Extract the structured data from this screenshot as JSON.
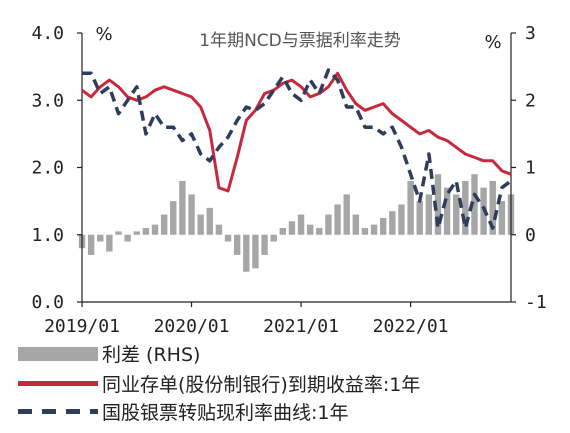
{
  "chart_data": {
    "type": "line",
    "title": "1年期NCD与票据利率走势",
    "left_unit": "%",
    "right_unit": "%",
    "x_ticks": [
      "2019/01",
      "2020/01",
      "2021/01",
      "2022/01"
    ],
    "left_axis": {
      "ticks": [
        "0.0",
        "1.0",
        "2.0",
        "3.0",
        "4.0"
      ],
      "ylim": [
        0,
        4
      ]
    },
    "right_axis": {
      "ticks": [
        "-1",
        "0",
        "1",
        "2",
        "3"
      ],
      "ylim": [
        -1,
        3
      ]
    },
    "x_range": [
      "2019-01",
      "2022-12"
    ],
    "series": [
      {
        "name": "利差 (RHS)",
        "kind": "bar",
        "axis": "right",
        "color": "#a6a6a6",
        "x": [
          "2019-01",
          "2019-02",
          "2019-03",
          "2019-04",
          "2019-05",
          "2019-06",
          "2019-07",
          "2019-08",
          "2019-09",
          "2019-10",
          "2019-11",
          "2019-12",
          "2020-01",
          "2020-02",
          "2020-03",
          "2020-04",
          "2020-05",
          "2020-06",
          "2020-07",
          "2020-08",
          "2020-09",
          "2020-10",
          "2020-11",
          "2020-12",
          "2021-01",
          "2021-02",
          "2021-03",
          "2021-04",
          "2021-05",
          "2021-06",
          "2021-07",
          "2021-08",
          "2021-09",
          "2021-10",
          "2021-11",
          "2021-12",
          "2022-01",
          "2022-02",
          "2022-03",
          "2022-04",
          "2022-05",
          "2022-06",
          "2022-07",
          "2022-08",
          "2022-09",
          "2022-10",
          "2022-11",
          "2022-12"
        ],
        "values": [
          -0.2,
          -0.3,
          -0.1,
          -0.25,
          0.05,
          -0.1,
          0.05,
          0.1,
          0.15,
          0.3,
          0.5,
          0.8,
          0.6,
          0.3,
          0.4,
          0.15,
          -0.1,
          -0.3,
          -0.55,
          -0.5,
          -0.3,
          -0.1,
          0.1,
          0.2,
          0.3,
          0.15,
          0.1,
          0.3,
          0.45,
          0.6,
          0.3,
          0.1,
          0.15,
          0.25,
          0.35,
          0.45,
          0.8,
          0.5,
          0.6,
          0.9,
          0.7,
          0.6,
          0.8,
          0.9,
          0.7,
          0.8,
          0.5,
          0.6
        ]
      },
      {
        "name": "同业存单(股份制银行)到期收益率:1年",
        "kind": "line",
        "axis": "left",
        "color": "#c8283c",
        "x": [
          "2019-01",
          "2019-02",
          "2019-03",
          "2019-04",
          "2019-05",
          "2019-06",
          "2019-07",
          "2019-08",
          "2019-09",
          "2019-10",
          "2019-11",
          "2019-12",
          "2020-01",
          "2020-02",
          "2020-03",
          "2020-04",
          "2020-05",
          "2020-06",
          "2020-07",
          "2020-08",
          "2020-09",
          "2020-10",
          "2020-11",
          "2020-12",
          "2021-01",
          "2021-02",
          "2021-03",
          "2021-04",
          "2021-05",
          "2021-06",
          "2021-07",
          "2021-08",
          "2021-09",
          "2021-10",
          "2021-11",
          "2021-12",
          "2022-01",
          "2022-02",
          "2022-03",
          "2022-04",
          "2022-05",
          "2022-06",
          "2022-07",
          "2022-08",
          "2022-09",
          "2022-10",
          "2022-11",
          "2022-12"
        ],
        "values": [
          3.15,
          3.05,
          3.2,
          3.3,
          3.2,
          3.05,
          3.0,
          3.05,
          3.15,
          3.2,
          3.15,
          3.1,
          3.05,
          2.9,
          2.55,
          1.7,
          1.65,
          2.15,
          2.7,
          2.85,
          3.1,
          3.15,
          3.25,
          3.3,
          3.2,
          3.05,
          3.1,
          3.2,
          3.4,
          3.15,
          2.95,
          2.85,
          2.9,
          2.95,
          2.8,
          2.7,
          2.6,
          2.5,
          2.55,
          2.45,
          2.4,
          2.3,
          2.2,
          2.15,
          2.1,
          2.1,
          1.95,
          1.9
        ]
      },
      {
        "name": "国股银票转贴现利率曲线:1年",
        "kind": "line",
        "axis": "left",
        "color": "#2f3d5c",
        "dashed": true,
        "x": [
          "2019-01",
          "2019-02",
          "2019-03",
          "2019-04",
          "2019-05",
          "2019-06",
          "2019-07",
          "2019-08",
          "2019-09",
          "2019-10",
          "2019-11",
          "2019-12",
          "2020-01",
          "2020-02",
          "2020-03",
          "2020-04",
          "2020-05",
          "2020-06",
          "2020-07",
          "2020-08",
          "2020-09",
          "2020-10",
          "2020-11",
          "2020-12",
          "2021-01",
          "2021-02",
          "2021-03",
          "2021-04",
          "2021-05",
          "2021-06",
          "2021-07",
          "2021-08",
          "2021-09",
          "2021-10",
          "2021-11",
          "2021-12",
          "2022-01",
          "2022-02",
          "2022-03",
          "2022-04",
          "2022-05",
          "2022-06",
          "2022-07",
          "2022-08",
          "2022-09",
          "2022-10",
          "2022-11",
          "2022-12"
        ],
        "values": [
          3.4,
          3.4,
          3.1,
          3.2,
          2.8,
          3.0,
          3.2,
          2.5,
          2.8,
          2.6,
          2.6,
          2.4,
          2.5,
          2.2,
          2.1,
          2.3,
          2.45,
          2.7,
          2.9,
          2.85,
          2.95,
          3.15,
          3.35,
          3.1,
          3.0,
          3.3,
          3.1,
          3.45,
          3.3,
          2.9,
          2.9,
          2.6,
          2.6,
          2.5,
          2.6,
          2.3,
          1.9,
          1.5,
          2.2,
          1.1,
          1.6,
          1.8,
          1.1,
          1.6,
          1.4,
          1.1,
          1.7,
          1.8
        ]
      }
    ],
    "legend_position": "bottom"
  }
}
